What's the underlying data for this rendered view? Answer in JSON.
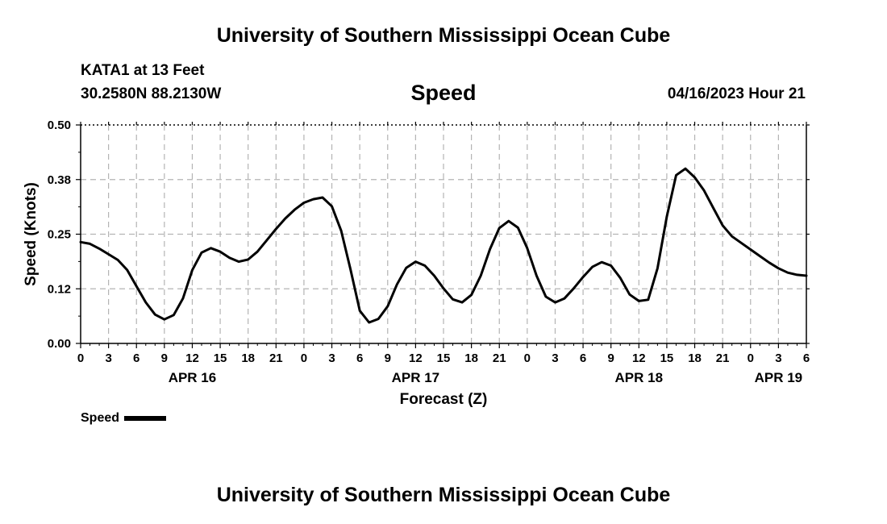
{
  "header": {
    "title": "University of Southern Mississippi Ocean Cube",
    "station": "KATA1 at 13 Feet",
    "coordinates": "30.2580N  88.2130W",
    "variable": "Speed",
    "datetime": "04/16/2023 Hour 21"
  },
  "footer": {
    "title": "University of Southern Mississippi Ocean Cube"
  },
  "legend": {
    "label": "Speed",
    "color": "#000000"
  },
  "chart_data": {
    "type": "line",
    "title": "Speed",
    "xlabel": "Forecast (Z)",
    "ylabel": "Speed (Knots)",
    "ylim": [
      0,
      0.5
    ],
    "yticks": [
      0.0,
      0.125,
      0.25,
      0.375,
      0.5
    ],
    "ytick_labels": [
      "0.00",
      "0.12",
      "0.25",
      "0.38",
      "0.50"
    ],
    "xlim": [
      0,
      78
    ],
    "xtick_hours": [
      0,
      3,
      6,
      9,
      12,
      15,
      18,
      21,
      24,
      27,
      30,
      33,
      36,
      39,
      42,
      45,
      48,
      51,
      54,
      57,
      60,
      63,
      66,
      69,
      72,
      75,
      78
    ],
    "xtick_labels": [
      "0",
      "3",
      "6",
      "9",
      "12",
      "15",
      "18",
      "21",
      "0",
      "3",
      "6",
      "9",
      "12",
      "15",
      "18",
      "21",
      "0",
      "3",
      "6",
      "9",
      "12",
      "15",
      "18",
      "21",
      "0",
      "3",
      "6"
    ],
    "date_labels": [
      {
        "label": "APR 16",
        "hour": 12
      },
      {
        "label": "APR 17",
        "hour": 36
      },
      {
        "label": "APR 18",
        "hour": 60
      },
      {
        "label": "APR 19",
        "hour": 75
      }
    ],
    "grid": true,
    "series": [
      {
        "name": "Speed",
        "color": "#000000",
        "x": [
          0,
          1,
          2,
          3,
          4,
          5,
          6,
          7,
          8,
          9,
          10,
          11,
          12,
          13,
          14,
          15,
          16,
          17,
          18,
          19,
          20,
          21,
          22,
          23,
          24,
          25,
          26,
          27,
          28,
          29,
          30,
          31,
          32,
          33,
          34,
          35,
          36,
          37,
          38,
          39,
          40,
          41,
          42,
          43,
          44,
          45,
          46,
          47,
          48,
          49,
          50,
          51,
          52,
          53,
          54,
          55,
          56,
          57,
          58,
          59,
          60,
          61,
          62,
          63,
          64,
          65,
          66,
          67,
          68,
          69,
          70,
          71,
          72,
          73,
          74,
          75,
          76,
          77,
          78
        ],
        "values": [
          0.232,
          0.228,
          0.217,
          0.204,
          0.191,
          0.168,
          0.131,
          0.094,
          0.066,
          0.055,
          0.065,
          0.103,
          0.168,
          0.208,
          0.218,
          0.21,
          0.196,
          0.187,
          0.192,
          0.21,
          0.236,
          0.262,
          0.286,
          0.306,
          0.322,
          0.33,
          0.334,
          0.314,
          0.258,
          0.17,
          0.075,
          0.048,
          0.056,
          0.085,
          0.135,
          0.173,
          0.187,
          0.178,
          0.155,
          0.126,
          0.101,
          0.094,
          0.111,
          0.155,
          0.216,
          0.264,
          0.28,
          0.265,
          0.218,
          0.155,
          0.107,
          0.094,
          0.103,
          0.126,
          0.152,
          0.175,
          0.186,
          0.178,
          0.15,
          0.112,
          0.097,
          0.1,
          0.172,
          0.29,
          0.385,
          0.4,
          0.38,
          0.35,
          0.31,
          0.27,
          0.245,
          0.23,
          0.215,
          0.2,
          0.185,
          0.172,
          0.162,
          0.157,
          0.155
        ]
      }
    ]
  }
}
